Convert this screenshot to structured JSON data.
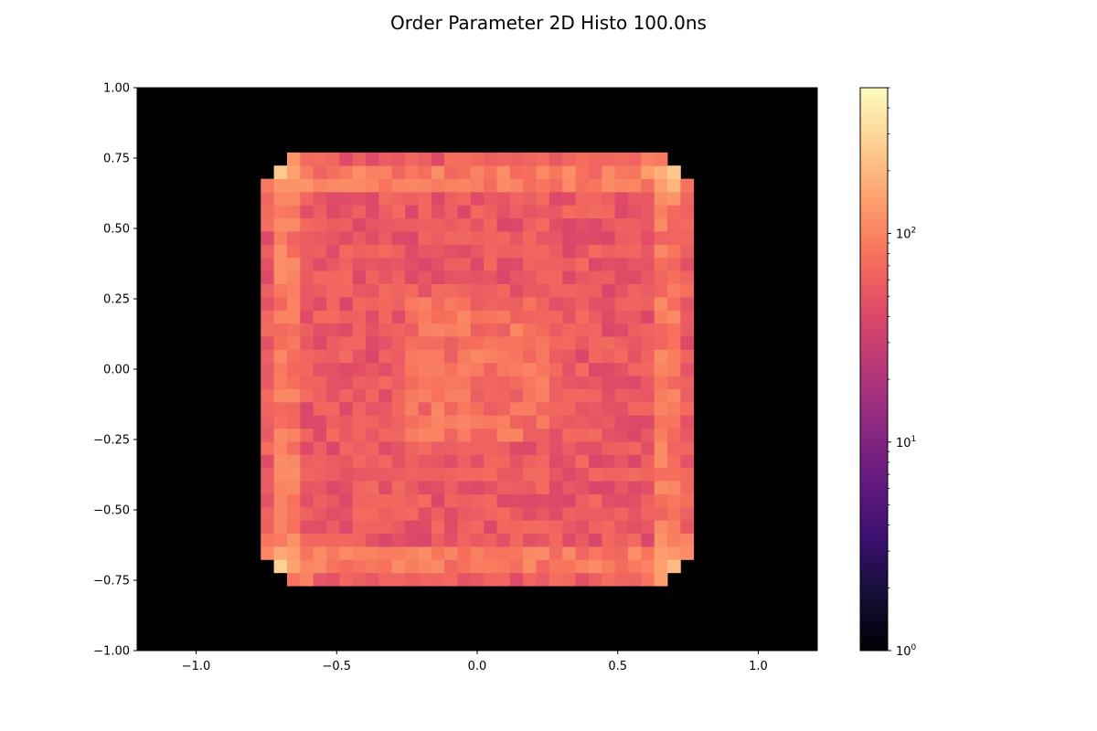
{
  "chart_data": {
    "type": "heatmap",
    "title": "Order Parameter 2D Histo 100.0ns",
    "xlabel": "",
    "ylabel": "",
    "xlim": [
      -1.21,
      1.21
    ],
    "ylim": [
      -1.0,
      1.0
    ],
    "x_ticks": [
      -1.0,
      -0.5,
      0.0,
      0.5,
      1.0
    ],
    "x_tick_labels": [
      "−1.0",
      "−0.5",
      "0.0",
      "0.5",
      "1.0"
    ],
    "y_ticks": [
      -1.0,
      -0.75,
      -0.5,
      -0.25,
      0.0,
      0.25,
      0.5,
      0.75,
      1.0
    ],
    "y_tick_labels": [
      "−1.00",
      "−0.75",
      "−0.50",
      "−0.25",
      "0.00",
      "0.25",
      "0.50",
      "0.75",
      "1.00"
    ],
    "colormap": "magma",
    "color_scale": "log",
    "background": "#000000",
    "colorbar": {
      "range": [
        1,
        500
      ],
      "ticks": [
        1,
        10,
        100
      ],
      "tick_bases": [
        "10",
        "10",
        "10"
      ],
      "tick_exponents": [
        "0",
        "1",
        "2"
      ]
    },
    "bins": {
      "x_edges_range": [
        -0.77,
        0.77
      ],
      "y_edges_range": [
        -0.77,
        0.77
      ],
      "count": 33,
      "value_model": {
        "center": 80,
        "ring_inner": 55,
        "edge": 90,
        "corner_peak": 500,
        "note_rows": ""
      }
    }
  }
}
